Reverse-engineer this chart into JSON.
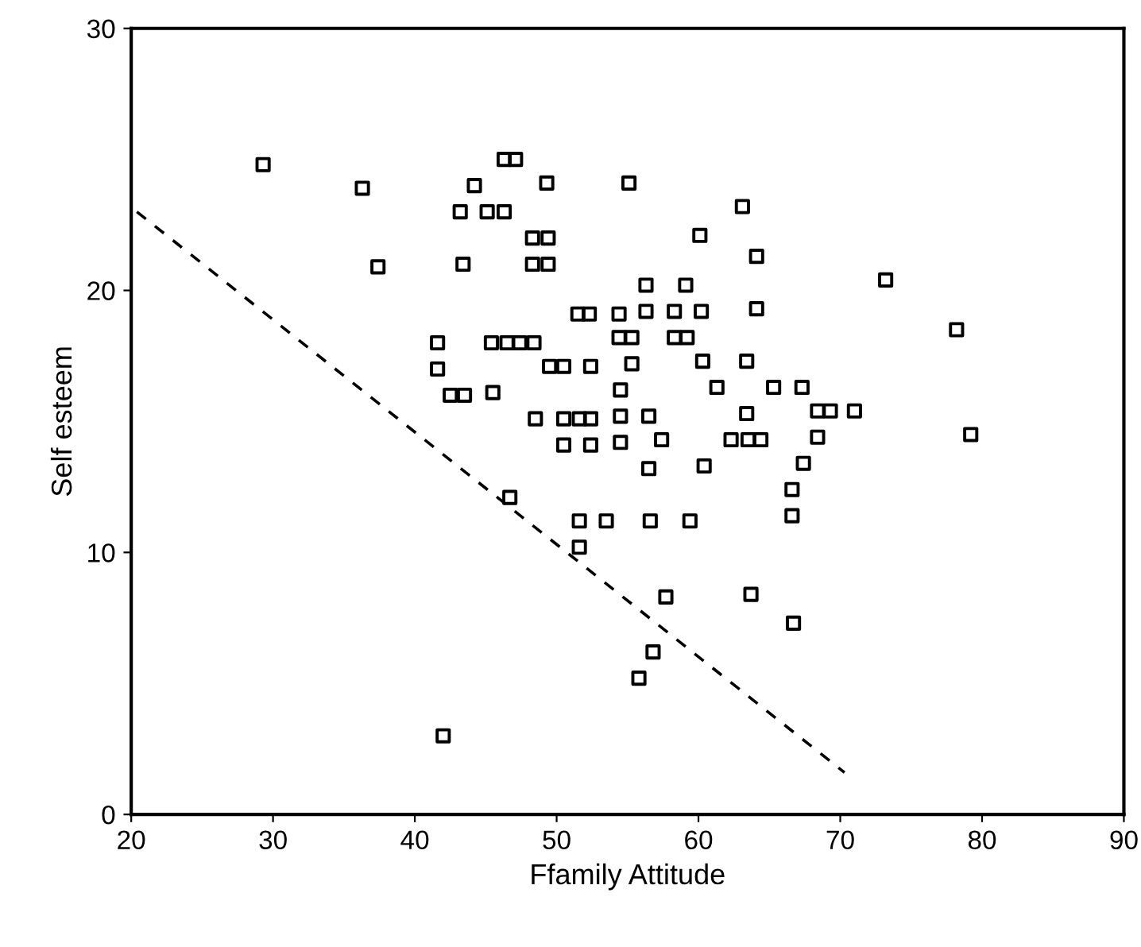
{
  "chart_data": {
    "type": "scatter",
    "xlabel": "Ffamily Attitude",
    "ylabel": "Self esteem",
    "xlim": [
      20,
      90
    ],
    "ylim": [
      0,
      30
    ],
    "xticks": [
      20,
      30,
      40,
      50,
      60,
      70,
      80,
      90
    ],
    "yticks": [
      0,
      10,
      20,
      30
    ],
    "grid": false,
    "legend": false,
    "series": [
      {
        "color": "#000000",
        "marker": "square",
        "x": [
          29.3,
          36.3,
          37.4,
          43.4,
          44.2,
          49.3,
          55.1,
          43.2,
          45.1,
          46.3,
          46.3,
          47.1,
          63.1,
          48.3,
          49.4,
          60.1,
          48.3,
          49.4,
          64.1,
          73.2,
          56.3,
          59.1,
          51.5,
          52.3,
          54.4,
          56.3,
          58.3,
          60.2,
          64.1,
          41.6,
          45.4,
          46.5,
          47.4,
          48.4,
          54.4,
          55.3,
          58.3,
          59.2,
          78.2,
          41.6,
          49.5,
          50.5,
          52.4,
          55.3,
          60.3,
          63.4,
          42.5,
          43.5,
          45.5,
          54.5,
          61.3,
          65.3,
          67.3,
          48.5,
          50.5,
          51.6,
          52.4,
          54.5,
          56.5,
          63.4,
          68.4,
          69.3,
          71.0,
          50.5,
          52.4,
          54.5,
          57.4,
          62.3,
          63.5,
          64.4,
          68.4,
          79.2,
          56.5,
          60.4,
          67.4,
          66.6,
          46.7,
          51.6,
          53.5,
          56.6,
          59.4,
          66.6,
          51.6,
          57.7,
          63.7,
          66.7,
          56.8,
          55.8,
          42.0
        ],
        "values": [
          24.8,
          23.9,
          20.9,
          21.0,
          24.0,
          24.1,
          24.1,
          23.0,
          23.0,
          23.0,
          25.0,
          25.0,
          23.2,
          22.0,
          22.0,
          22.1,
          21.0,
          21.0,
          21.3,
          20.4,
          20.2,
          20.2,
          19.1,
          19.1,
          19.1,
          19.2,
          19.2,
          19.2,
          19.3,
          18.0,
          18.0,
          18.0,
          18.0,
          18.0,
          18.2,
          18.2,
          18.2,
          18.2,
          18.5,
          17.0,
          17.1,
          17.1,
          17.1,
          17.2,
          17.3,
          17.3,
          16.0,
          16.0,
          16.1,
          16.2,
          16.3,
          16.3,
          16.3,
          15.1,
          15.1,
          15.1,
          15.1,
          15.2,
          15.2,
          15.3,
          15.4,
          15.4,
          15.4,
          14.1,
          14.1,
          14.2,
          14.3,
          14.3,
          14.3,
          14.3,
          14.4,
          14.5,
          13.2,
          13.3,
          13.4,
          12.4,
          12.1,
          11.2,
          11.2,
          11.2,
          11.2,
          11.4,
          10.2,
          8.3,
          8.4,
          7.3,
          6.2,
          5.2,
          3.0
        ]
      },
      {
        "type": "line",
        "color": "#000000",
        "line_style": "dashed",
        "marker": "none",
        "x": [
          20.4,
          70.3
        ],
        "values": [
          23.0,
          1.6
        ]
      }
    ]
  }
}
